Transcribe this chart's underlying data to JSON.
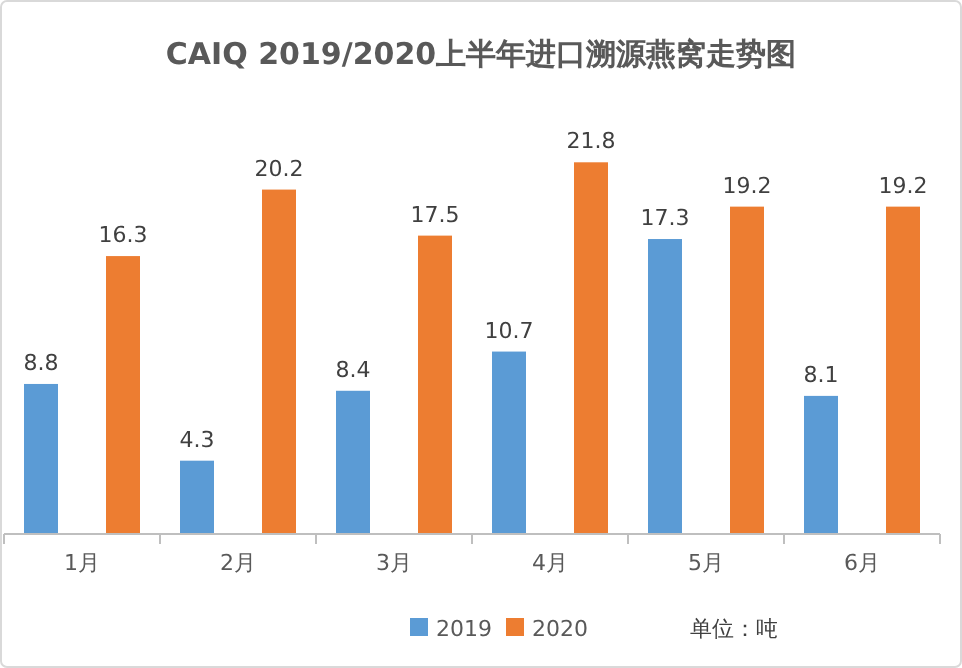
{
  "chart_data": {
    "type": "bar",
    "title": "CAIQ 2019/2020上半年进口溯源燕窝走势图",
    "categories": [
      "1月",
      "2月",
      "3月",
      "4月",
      "5月",
      "6月"
    ],
    "series": [
      {
        "name": "2019",
        "color": "#5b9bd5",
        "values": [
          8.8,
          4.3,
          8.4,
          10.7,
          17.3,
          8.1
        ]
      },
      {
        "name": "2020",
        "color": "#ed7d31",
        "values": [
          16.3,
          20.2,
          17.5,
          21.8,
          19.2,
          19.2
        ]
      }
    ],
    "data_labels": true,
    "legend": "bottom",
    "grid": false,
    "annotations": [
      "单位：吨"
    ]
  }
}
